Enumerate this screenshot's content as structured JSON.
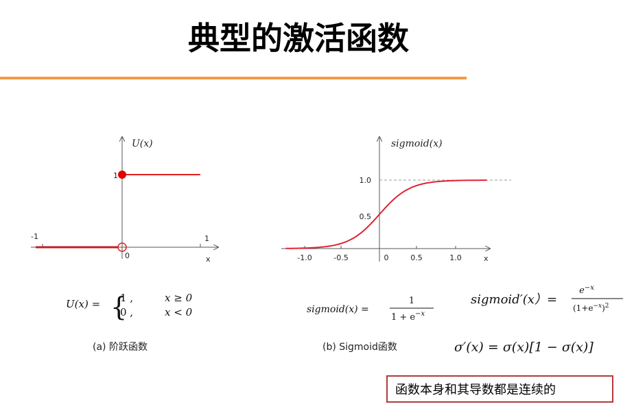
{
  "title": "典型的激活函数",
  "step_plot": {
    "y_label": "U(x)",
    "tick_1_y": "1",
    "tick_neg1_x": "-1",
    "tick_1_x": "1",
    "origin": "0",
    "x_label": "x",
    "formula": {
      "lhs": "U(x) =",
      "case1_value": "1 ,",
      "case1_condition": "x ≥ 0",
      "case2_value": "0 ,",
      "case2_condition": "x < 0"
    },
    "caption": "(a) 阶跃函数"
  },
  "sigmoid_plot": {
    "y_label": "sigmoid(x)",
    "y_ticks": [
      "1.0",
      "0.5"
    ],
    "x_ticks": [
      "-1.0",
      "-0.5",
      "0",
      "0.5",
      "1.0"
    ],
    "x_label": "x",
    "formula": {
      "lhs": "sigmoid(x) =",
      "numerator": "1",
      "denominator_base": "1 + e",
      "denominator_exponent": "−x"
    },
    "caption": "(b) Sigmoid函数"
  },
  "derivative": {
    "lhs": "sigmoid′(x）=",
    "numerator_base": "e",
    "numerator_exponent": "−x",
    "denominator_base": "(1+e",
    "denominator_exponent": "−x",
    "denominator_close": ")",
    "denominator_power": "2"
  },
  "sigma_identity": "σ′(x) = σ(x)[1 − σ(x)]",
  "note": "函数本身和其导数都是连续的"
}
